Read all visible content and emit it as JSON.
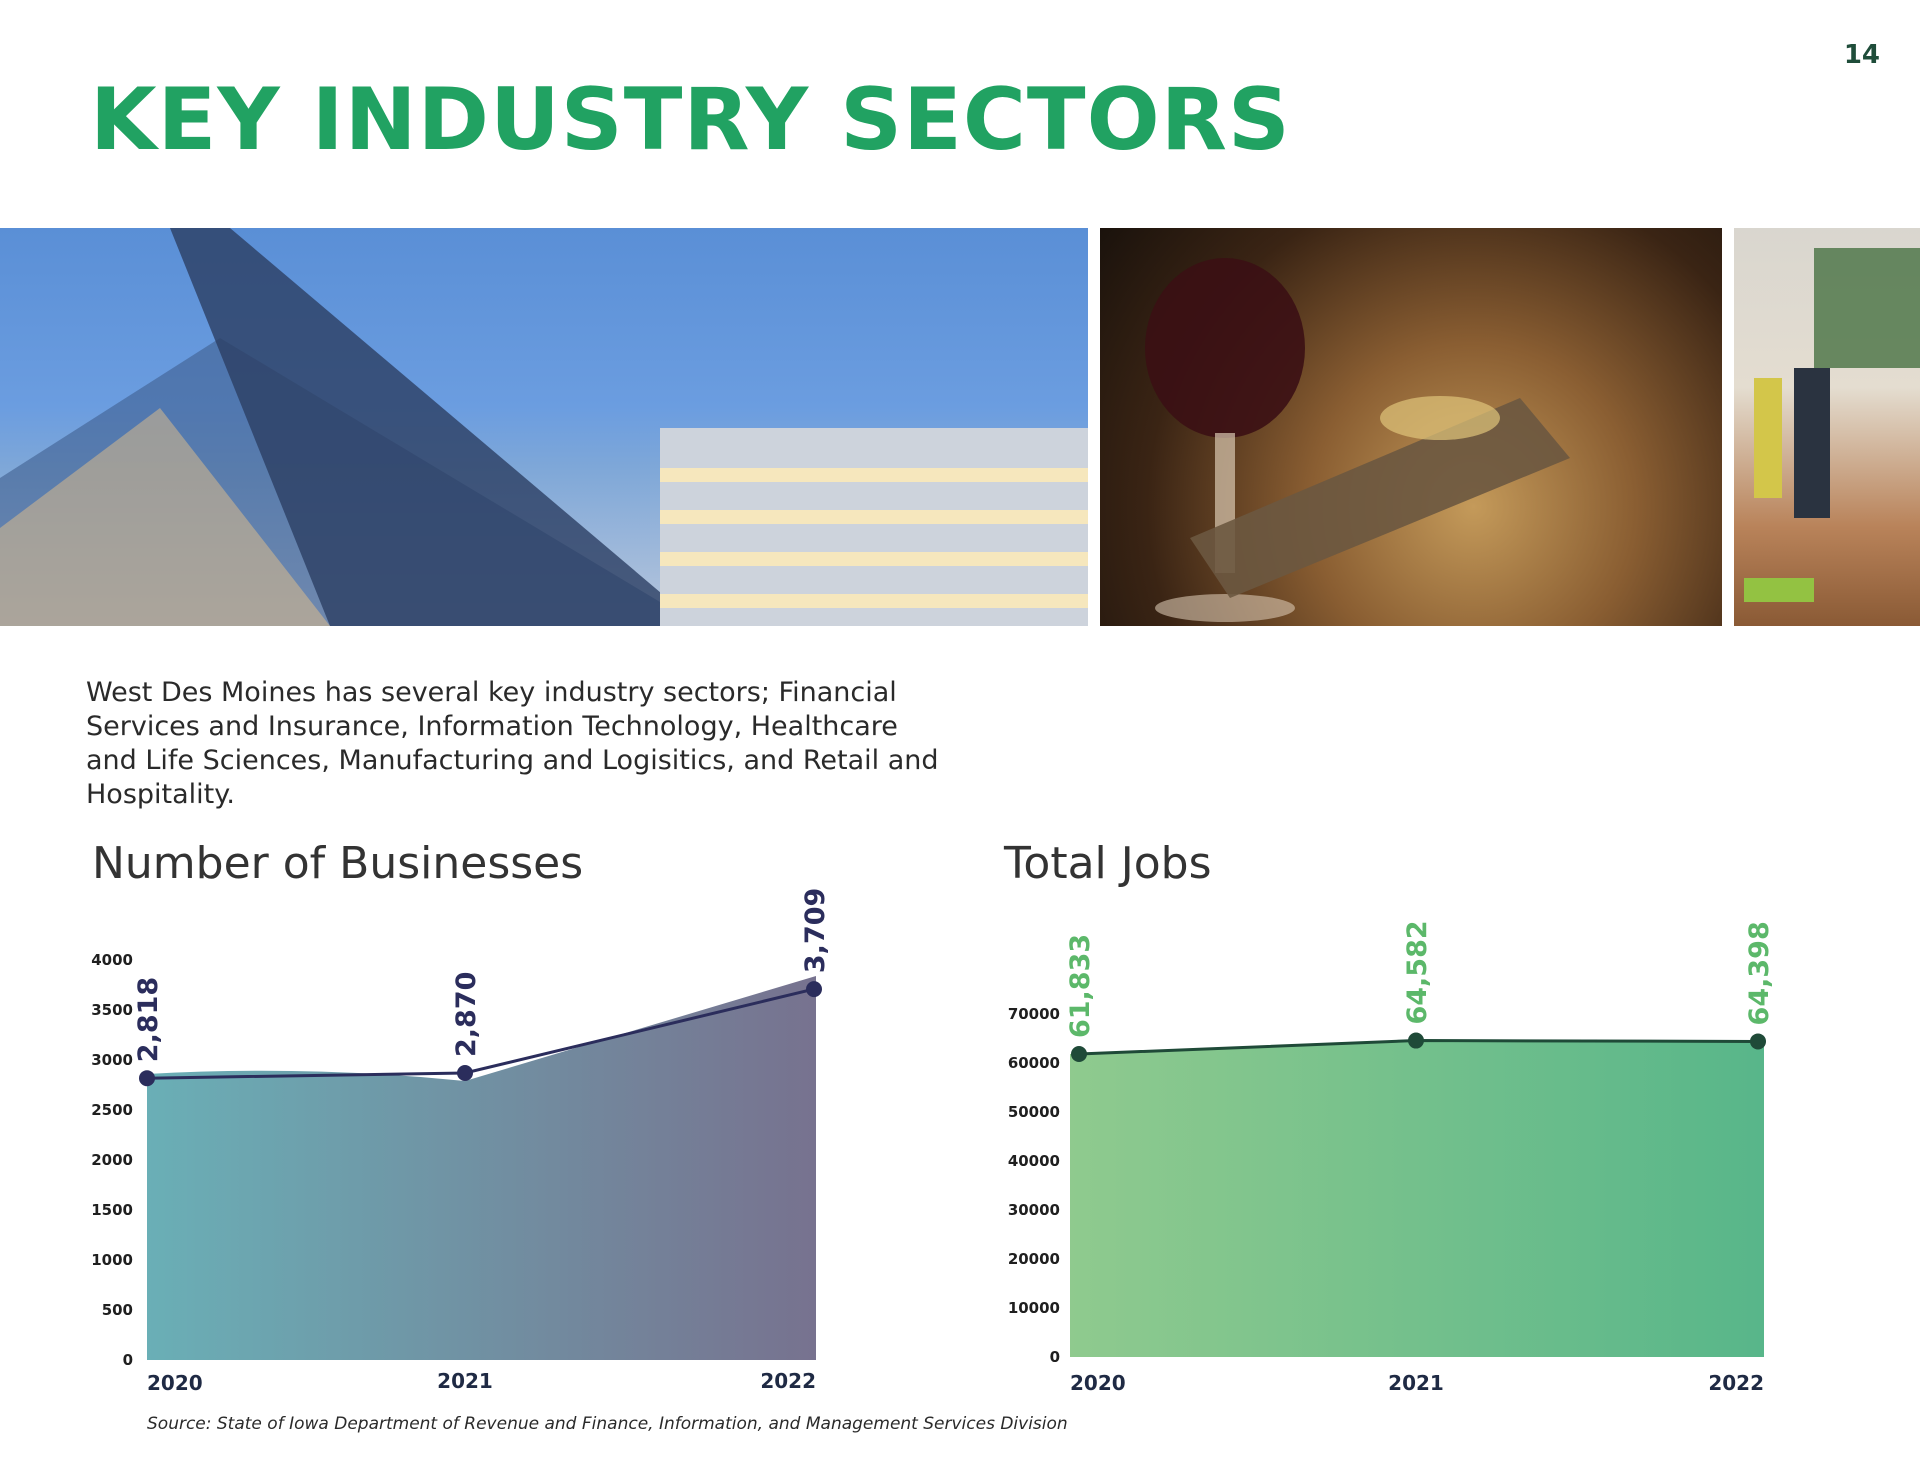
{
  "page": {
    "number": "14",
    "title": "KEY INDUSTRY SECTORS",
    "intro": "West Des Moines has several key industry sectors; Financial Services and Insurance, Information Technology, Healthcare and Life Sciences, Manufacturing and Logisitics, and Retail and Hospitality.",
    "source": "Source: State of Iowa Department of Revenue and Finance, Information, and Management Services Division"
  },
  "colors": {
    "title": "#21a262",
    "left_area_start": "#6aafb6",
    "left_area_end": "#77728f",
    "left_line": "#2b2d5c",
    "right_area_start": "#8fca8e",
    "right_area_end": "#58b68a",
    "right_line": "#1f4a38",
    "right_label": "#5cb86a"
  },
  "chart_data": [
    {
      "type": "area",
      "title": "Number of Businesses",
      "categories": [
        "2020",
        "2021",
        "2022"
      ],
      "values": [
        2818,
        2870,
        3709
      ],
      "data_labels": [
        "2,818",
        "2,870",
        "3,709"
      ],
      "ylim": [
        0,
        4000
      ],
      "yticks": [
        "0",
        "500",
        "1000",
        "1500",
        "2000",
        "2500",
        "3000",
        "3500",
        "4000"
      ],
      "grid": false,
      "legend": "none"
    },
    {
      "type": "area",
      "title": "Total Jobs",
      "categories": [
        "2020",
        "2021",
        "2022"
      ],
      "values": [
        61833,
        64582,
        64398
      ],
      "data_labels": [
        "61,833",
        "64,582",
        "64,398"
      ],
      "ylim": [
        0,
        70000
      ],
      "yticks": [
        "0",
        "10000",
        "20000",
        "30000",
        "40000",
        "50000",
        "60000",
        "70000"
      ],
      "grid": false,
      "legend": "none"
    }
  ]
}
